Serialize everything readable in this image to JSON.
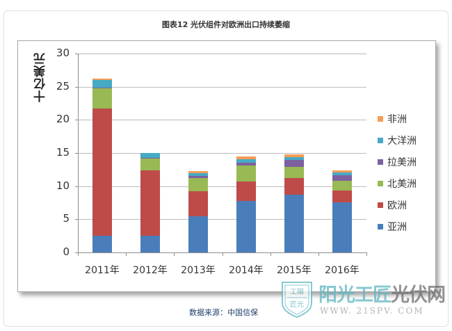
{
  "title": "图表12  光伏组件对欧洲出口持续萎缩",
  "source": "数据来源：中国信保",
  "watermark": {
    "shield_text_top": "工陽",
    "shield_text_bottom": "匠光",
    "brand_light": "阳光工匠",
    "brand_dark": "光伏网",
    "url": "WWW. 21SPV. COM"
  },
  "colors": {
    "亚洲": "#4a7ebb",
    "欧洲": "#be4b48",
    "北美洲": "#98b954",
    "拉美洲": "#7d60a0",
    "大洋洲": "#46aac5",
    "非洲": "#f59d56"
  },
  "chart_data": {
    "type": "bar",
    "stacked": true,
    "title": "图表12  光伏组件对欧洲出口持续萎缩",
    "xlabel": "",
    "ylabel": "十亿美元",
    "ylim": [
      0,
      30
    ],
    "yticks": [
      0,
      5,
      10,
      15,
      20,
      25,
      30
    ],
    "grid": true,
    "legend_position": "right",
    "categories": [
      "2011年",
      "2012年",
      "2013年",
      "2014年",
      "2015年",
      "2016年"
    ],
    "series": [
      {
        "name": "亚洲",
        "color": "#4a7ebb",
        "values": [
          2.5,
          2.5,
          5.45,
          7.8,
          8.7,
          7.55
        ]
      },
      {
        "name": "欧洲",
        "color": "#be4b48",
        "values": [
          19.2,
          9.9,
          3.75,
          2.9,
          2.5,
          1.8
        ]
      },
      {
        "name": "北美洲",
        "color": "#98b954",
        "values": [
          3.1,
          1.8,
          2.1,
          2.4,
          1.7,
          1.45
        ]
      },
      {
        "name": "拉美洲",
        "color": "#7d60a0",
        "values": [
          0.1,
          0.1,
          0.3,
          0.5,
          1.05,
          0.85
        ]
      },
      {
        "name": "大洋洲",
        "color": "#46aac5",
        "values": [
          1.1,
          0.7,
          0.35,
          0.45,
          0.4,
          0.4
        ]
      },
      {
        "name": "非洲",
        "color": "#f59d56",
        "values": [
          0.2,
          0.05,
          0.35,
          0.45,
          0.4,
          0.35
        ]
      }
    ],
    "legend": [
      "非洲",
      "大洋洲",
      "拉美洲",
      "北美洲",
      "欧洲",
      "亚洲"
    ]
  }
}
